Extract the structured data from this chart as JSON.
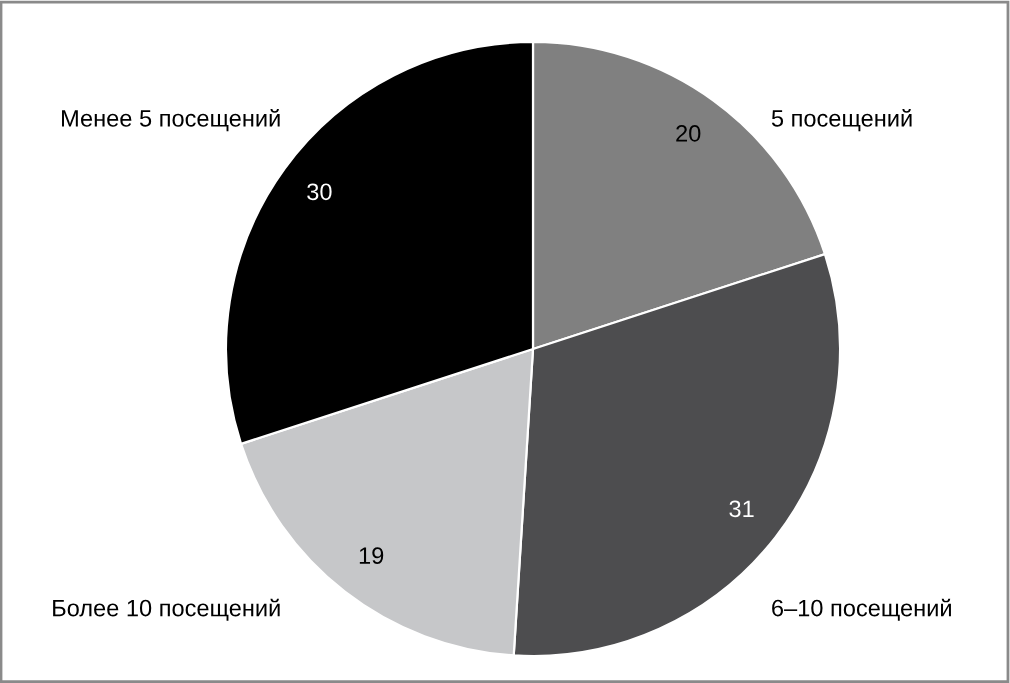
{
  "chart_data": {
    "type": "pie",
    "categories": [
      "5 посещений",
      "6–10 посещений",
      "Более 10 посещений",
      "Менее 5 посещений"
    ],
    "values": [
      20,
      31,
      19,
      30
    ],
    "colors": [
      "#808080",
      "#4d4d4f",
      "#c6c7c9",
      "#000000"
    ],
    "data_labels": true
  }
}
